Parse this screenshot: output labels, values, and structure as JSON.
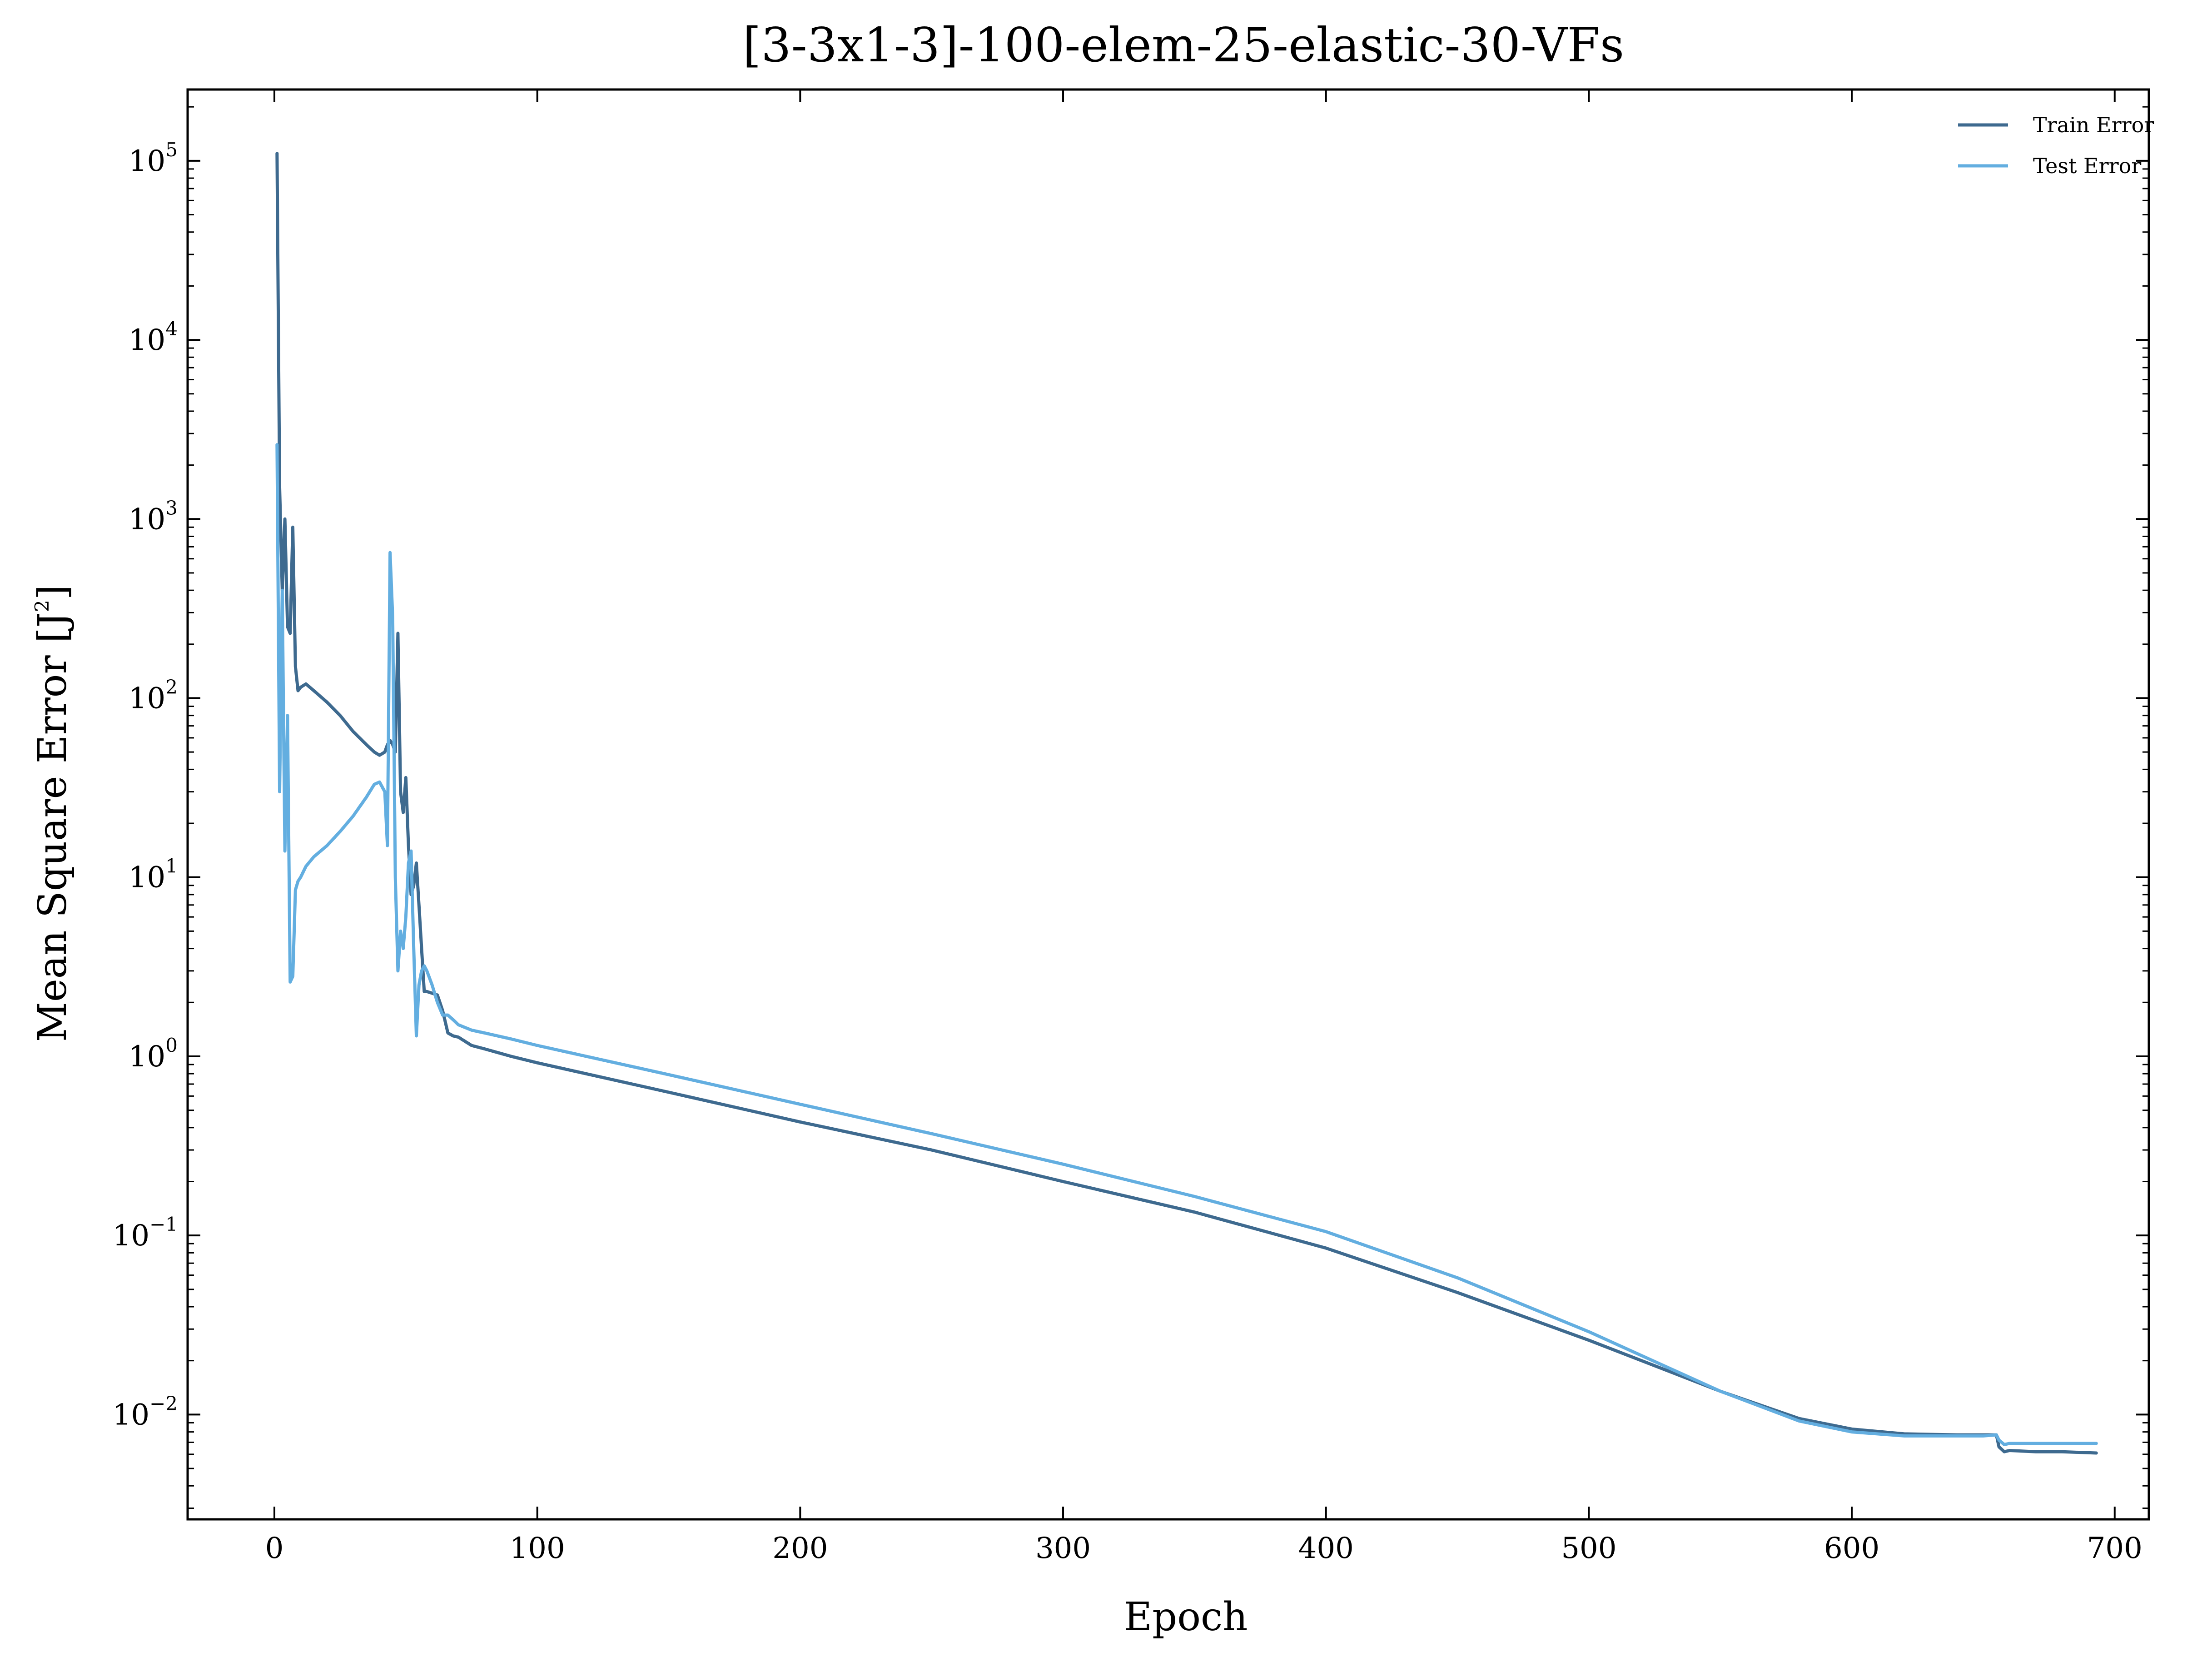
{
  "chart_data": {
    "type": "line",
    "title": "[3-3x1-3]-100-elem-25-elastic-30-VFs",
    "xlabel": "Epoch",
    "ylabel": "Mean Square Error [J",
    "ylabel_superscript": "2",
    "ylabel_suffix": "]",
    "xlim": [
      -33,
      713
    ],
    "ylim": [
      0.0026,
      250000
    ],
    "yscale": "log",
    "x_ticks": [
      0,
      100,
      200,
      300,
      400,
      500,
      600,
      700
    ],
    "x_tick_labels": [
      "0",
      "100",
      "200",
      "300",
      "400",
      "500",
      "600",
      "700"
    ],
    "y_ticks": [
      0.01,
      0.1,
      1,
      10,
      100,
      1000,
      10000,
      100000
    ],
    "y_tick_labels": [
      {
        "base": "10",
        "exp": "−2"
      },
      {
        "base": "10",
        "exp": "−1"
      },
      {
        "base": "10",
        "exp": "0"
      },
      {
        "base": "10",
        "exp": "1"
      },
      {
        "base": "10",
        "exp": "2"
      },
      {
        "base": "10",
        "exp": "3"
      },
      {
        "base": "10",
        "exp": "4"
      },
      {
        "base": "10",
        "exp": "5"
      }
    ],
    "grid": false,
    "legend_position": "top-right",
    "series": [
      {
        "name": "Train Error",
        "color": "#3e6a8f",
        "x": [
          1,
          2,
          3,
          4,
          5,
          6,
          7,
          8,
          9,
          10,
          12,
          15,
          20,
          25,
          30,
          35,
          38,
          40,
          42,
          43,
          44,
          45,
          46,
          47,
          48,
          49,
          50,
          51,
          52,
          53,
          54,
          55,
          56,
          57,
          58,
          60,
          62,
          64,
          66,
          68,
          70,
          75,
          80,
          90,
          100,
          150,
          200,
          250,
          300,
          350,
          400,
          450,
          500,
          550,
          580,
          600,
          620,
          640,
          650,
          655,
          656,
          658,
          660,
          670,
          680,
          693
        ],
        "y": [
          110000,
          1500,
          400,
          1000,
          250,
          230,
          900,
          150,
          110,
          115,
          120,
          110,
          95,
          80,
          65,
          55,
          50,
          48,
          50,
          55,
          58,
          55,
          50,
          230,
          30,
          23,
          36,
          15,
          8,
          9,
          12,
          7,
          4,
          2.3,
          2.3,
          2.25,
          2.2,
          1.8,
          1.35,
          1.3,
          1.28,
          1.15,
          1.1,
          1.0,
          0.92,
          0.63,
          0.43,
          0.3,
          0.2,
          0.135,
          0.085,
          0.048,
          0.026,
          0.0135,
          0.0095,
          0.0083,
          0.0078,
          0.0077,
          0.0077,
          0.0077,
          0.0066,
          0.0062,
          0.0063,
          0.0062,
          0.0062,
          0.0061
        ]
      },
      {
        "name": "Test Error",
        "color": "#63aee0",
        "x": [
          1,
          2,
          3,
          4,
          5,
          6,
          7,
          8,
          9,
          10,
          12,
          15,
          20,
          25,
          30,
          35,
          38,
          40,
          42,
          43,
          44,
          45,
          46,
          47,
          48,
          49,
          50,
          51,
          52,
          53,
          54,
          55,
          56,
          57,
          58,
          60,
          62,
          64,
          66,
          68,
          70,
          75,
          80,
          90,
          100,
          150,
          200,
          250,
          300,
          350,
          400,
          450,
          500,
          550,
          580,
          600,
          620,
          640,
          650,
          655,
          656,
          658,
          660,
          670,
          680,
          693
        ],
        "y": [
          2600,
          30,
          400,
          14,
          80,
          2.6,
          2.8,
          8.5,
          9.5,
          10,
          11.5,
          13,
          15,
          18,
          22,
          28,
          33,
          34,
          30,
          15,
          650,
          280,
          10,
          3.0,
          5.0,
          4.0,
          6.0,
          12,
          14,
          4,
          1.3,
          2.5,
          3.0,
          3.2,
          3.0,
          2.5,
          2.0,
          1.7,
          1.7,
          1.6,
          1.5,
          1.4,
          1.35,
          1.25,
          1.15,
          0.79,
          0.54,
          0.37,
          0.25,
          0.165,
          0.105,
          0.058,
          0.029,
          0.0135,
          0.0092,
          0.008,
          0.0076,
          0.0076,
          0.0076,
          0.0077,
          0.0072,
          0.0068,
          0.0069,
          0.0069,
          0.0069,
          0.0069
        ]
      }
    ]
  }
}
